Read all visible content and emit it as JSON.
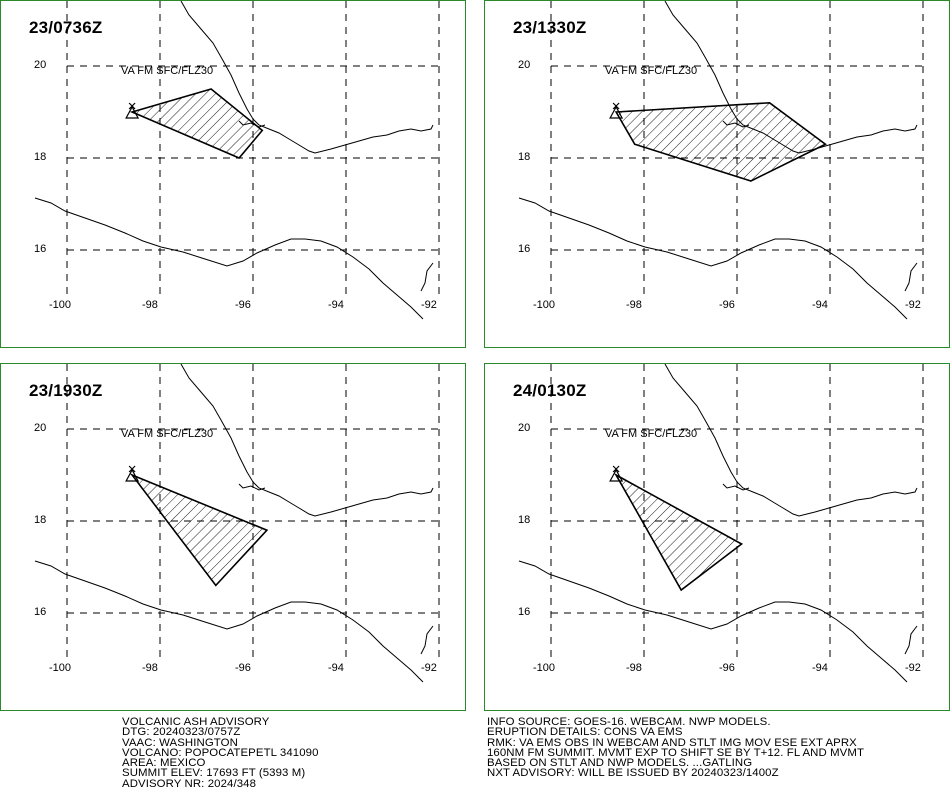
{
  "panels": [
    {
      "id": "p1",
      "timestamp": "23/0736Z",
      "va_label": "VA FM SFC/FLZ30",
      "lat_labels": [
        "20",
        "18",
        "16"
      ],
      "lon_labels": [
        "-100",
        "-98",
        "-96",
        "-94",
        "-92"
      ],
      "ash_polygon": [
        [
          -98.6,
          19.0
        ],
        [
          -96.9,
          19.5
        ],
        [
          -95.8,
          18.6
        ],
        [
          -96.3,
          18.0
        ]
      ]
    },
    {
      "id": "p2",
      "timestamp": "23/1330Z",
      "va_label": "VA FM SFC/FLZ30",
      "lat_labels": [
        "20",
        "18",
        "16"
      ],
      "lon_labels": [
        "-100",
        "-98",
        "-96",
        "-94",
        "-92"
      ],
      "ash_polygon": [
        [
          -98.6,
          19.0
        ],
        [
          -95.3,
          19.2
        ],
        [
          -94.1,
          18.3
        ],
        [
          -95.7,
          17.5
        ],
        [
          -98.2,
          18.3
        ]
      ]
    },
    {
      "id": "p3",
      "timestamp": "23/1930Z",
      "va_label": "VA FM SFC/FLZ30",
      "lat_labels": [
        "20",
        "18",
        "16"
      ],
      "lon_labels": [
        "-100",
        "-98",
        "-96",
        "-94",
        "-92"
      ],
      "ash_polygon": [
        [
          -98.6,
          19.0
        ],
        [
          -95.7,
          17.8
        ],
        [
          -96.8,
          16.6
        ]
      ]
    },
    {
      "id": "p4",
      "timestamp": "24/0130Z",
      "va_label": "VA FM SFC/FLZ30",
      "lat_labels": [
        "20",
        "18",
        "16"
      ],
      "lon_labels": [
        "-100",
        "-98",
        "-96",
        "-94",
        "-92"
      ],
      "ash_polygon": [
        [
          -98.6,
          19.0
        ],
        [
          -95.9,
          17.5
        ],
        [
          -97.2,
          16.5
        ]
      ]
    }
  ],
  "advisory_left": [
    "VOLCANIC ASH ADVISORY",
    "DTG: 20240323/0757Z",
    "VAAC: WASHINGTON",
    "VOLCANO: POPOCATEPETL 341090",
    "AREA: MEXICO",
    "SUMMIT ELEV: 17693 FT (5393 M)",
    "ADVISORY NR: 2024/348"
  ],
  "advisory_right": [
    "INFO SOURCE: GOES-16. WEBCAM. NWP MODELS.",
    "ERUPTION DETAILS: CONS VA EMS",
    "RMK: VA EMS OBS IN WEBCAM AND STLT IMG MOV ESE EXT APRX",
    "160NM FM SUMMIT. MVMT EXP TO SHIFT SE BY T+12. FL AND MVMT",
    "BASED ON STLT AND NWP MODELS. ...GATLING",
    "NXT ADVISORY: WILL BE ISSUED BY 20240323/1400Z"
  ],
  "colors": {
    "border": "#2a8a2a",
    "line": "#000000"
  }
}
